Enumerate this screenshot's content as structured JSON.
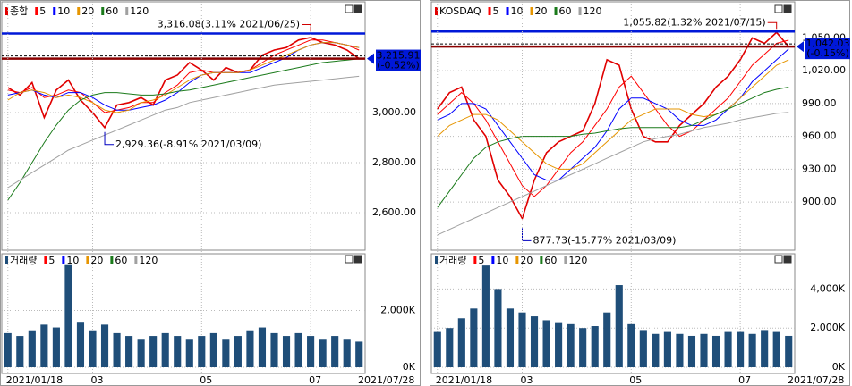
{
  "chart_data": [
    {
      "type": "line",
      "series": [
        {
          "name": "종합",
          "color": "#e00000",
          "values": [
            3100,
            3070,
            3120,
            2980,
            3090,
            3130,
            3050,
            3000,
            2940,
            3030,
            3040,
            3060,
            3030,
            3130,
            3150,
            3200,
            3170,
            3130,
            3180,
            3160,
            3170,
            3230,
            3250,
            3260,
            3290,
            3300,
            3280,
            3270,
            3250,
            3216
          ]
        },
        {
          "name": "5",
          "color": "#ff0000",
          "values": [
            3090,
            3080,
            3100,
            3060,
            3070,
            3090,
            3080,
            3040,
            3000,
            3010,
            3020,
            3040,
            3040,
            3080,
            3110,
            3160,
            3170,
            3160,
            3160,
            3160,
            3170,
            3200,
            3230,
            3250,
            3270,
            3290,
            3290,
            3280,
            3270,
            3250
          ]
        },
        {
          "name": "10",
          "color": "#0000ff",
          "values": [
            3070,
            3080,
            3090,
            3070,
            3060,
            3080,
            3080,
            3060,
            3030,
            3010,
            3010,
            3020,
            3030,
            3050,
            3080,
            3120,
            3150,
            3160,
            3160,
            3160,
            3160,
            3180,
            3200,
            3220,
            3250,
            3270,
            3280,
            3280,
            3270,
            3260
          ]
        },
        {
          "name": "20",
          "color": "#e69500",
          "values": [
            3050,
            3080,
            3090,
            3080,
            3060,
            3070,
            3060,
            3040,
            3010,
            3000,
            3010,
            3040,
            3050,
            3070,
            3100,
            3130,
            3150,
            3160,
            3160,
            3160,
            3170,
            3190,
            3210,
            3230,
            3250,
            3270,
            3280,
            3280,
            3270,
            3260
          ]
        },
        {
          "name": "60",
          "color": "#1a7a1a",
          "values": [
            2650,
            2720,
            2800,
            2880,
            2950,
            3010,
            3050,
            3070,
            3080,
            3080,
            3075,
            3070,
            3070,
            3075,
            3085,
            3090,
            3100,
            3110,
            3120,
            3130,
            3140,
            3150,
            3160,
            3170,
            3180,
            3190,
            3200,
            3205,
            3210,
            3215
          ]
        },
        {
          "name": "120",
          "color": "#a0a0a0",
          "values": [
            2700,
            2730,
            2760,
            2790,
            2820,
            2850,
            2870,
            2890,
            2910,
            2930,
            2950,
            2970,
            2990,
            3010,
            3020,
            3040,
            3050,
            3060,
            3070,
            3080,
            3090,
            3100,
            3110,
            3115,
            3120,
            3125,
            3130,
            3135,
            3140,
            3145
          ]
        }
      ],
      "ylim": [
        2450,
        3443
      ],
      "yticks": [
        {
          "value": 2600,
          "label": "2,600.00"
        },
        {
          "value": 2800,
          "label": "2,800.00"
        },
        {
          "value": 3000,
          "label": "3,000.00"
        }
      ],
      "high": {
        "value": 3316.08,
        "label": "3,316.08(3.11% 2021/06/25)"
      },
      "low": {
        "value": 2929.36,
        "label": "2,929.36(-8.91% 2021/03/09)"
      },
      "current": {
        "value": 3215.91,
        "label": "3,215.91",
        "change": "(-0.52%)"
      }
    },
    {
      "type": "bar",
      "series": [
        {
          "name": "거래량",
          "color": "#1f4e79",
          "values": [
            1200,
            1100,
            1300,
            1500,
            1400,
            3600,
            1600,
            1300,
            1500,
            1200,
            1100,
            1000,
            1100,
            1200,
            1100,
            1000,
            1100,
            1200,
            1000,
            1100,
            1300,
            1400,
            1200,
            1100,
            1200,
            1100,
            1000,
            1100,
            1000,
            900
          ]
        }
      ],
      "legend": [
        "5",
        "10",
        "20",
        "60",
        "120"
      ],
      "legend_colors": [
        "#ff0000",
        "#0000ff",
        "#e69500",
        "#1a7a1a",
        "#a0a0a0"
      ],
      "categories": [
        "2021/01/18",
        null,
        null,
        null,
        null,
        null,
        null,
        "03",
        null,
        null,
        null,
        null,
        null,
        null,
        null,
        null,
        "05",
        null,
        null,
        null,
        null,
        null,
        null,
        null,
        null,
        "07",
        null,
        null,
        null,
        null
      ],
      "current_date": "2021/07/28",
      "ylim": [
        0,
        4000
      ],
      "yticks": [
        {
          "value": 0,
          "label": "0K"
        },
        {
          "value": 2000,
          "label": "2,000K"
        }
      ]
    },
    {
      "type": "line",
      "series": [
        {
          "name": "KOSDAQ",
          "color": "#e00000",
          "values": [
            985,
            1000,
            1005,
            975,
            960,
            920,
            905,
            885,
            920,
            945,
            955,
            960,
            965,
            990,
            1030,
            1025,
            985,
            960,
            955,
            955,
            970,
            980,
            990,
            1005,
            1015,
            1030,
            1050,
            1045,
            1055,
            1042
          ]
        },
        {
          "name": "5",
          "color": "#ff0000",
          "values": [
            980,
            990,
            1000,
            990,
            975,
            955,
            935,
            915,
            905,
            915,
            930,
            945,
            955,
            970,
            985,
            1005,
            1015,
            1000,
            985,
            970,
            960,
            965,
            975,
            985,
            995,
            1010,
            1025,
            1035,
            1045,
            1048
          ]
        },
        {
          "name": "10",
          "color": "#0000ff",
          "values": [
            975,
            980,
            990,
            990,
            985,
            970,
            955,
            940,
            925,
            920,
            920,
            930,
            940,
            950,
            965,
            985,
            995,
            995,
            990,
            985,
            975,
            970,
            970,
            975,
            985,
            995,
            1010,
            1020,
            1030,
            1040
          ]
        },
        {
          "name": "20",
          "color": "#e69500",
          "values": [
            960,
            970,
            975,
            980,
            980,
            975,
            965,
            955,
            945,
            935,
            930,
            930,
            935,
            945,
            955,
            965,
            975,
            980,
            985,
            985,
            985,
            980,
            978,
            980,
            985,
            995,
            1005,
            1015,
            1025,
            1030
          ]
        },
        {
          "name": "60",
          "color": "#1a7a1a",
          "values": [
            895,
            910,
            925,
            940,
            950,
            955,
            958,
            960,
            960,
            960,
            960,
            960,
            962,
            963,
            965,
            967,
            968,
            968,
            968,
            968,
            968,
            970,
            975,
            980,
            985,
            990,
            995,
            1000,
            1003,
            1005
          ]
        },
        {
          "name": "120",
          "color": "#a0a0a0",
          "values": [
            870,
            875,
            880,
            885,
            890,
            895,
            900,
            905,
            910,
            915,
            920,
            925,
            930,
            935,
            940,
            945,
            950,
            955,
            958,
            960,
            962,
            965,
            968,
            970,
            972,
            975,
            977,
            979,
            981,
            982
          ]
        }
      ],
      "ylim": [
        856,
        1083
      ],
      "yticks": [
        {
          "value": 900,
          "label": "900.00"
        },
        {
          "value": 930,
          "label": "930.00"
        },
        {
          "value": 960,
          "label": "960.00"
        },
        {
          "value": 990,
          "label": "990.00"
        },
        {
          "value": 1020,
          "label": "1,020.00"
        },
        {
          "value": 1050,
          "label": "1,050.00"
        }
      ],
      "high": {
        "value": 1055.82,
        "label": "1,055.82(1.32% 2021/07/15)"
      },
      "low": {
        "value": 877.73,
        "label": "877.73(-15.77% 2021/03/09)"
      },
      "current": {
        "value": 1042.03,
        "label": "1,042.03",
        "change": "(-0.15%)"
      }
    },
    {
      "type": "bar",
      "series": [
        {
          "name": "거래량",
          "color": "#1f4e79",
          "values": [
            1800,
            2000,
            2500,
            3000,
            5200,
            4000,
            3000,
            2800,
            2600,
            2400,
            2300,
            2200,
            2000,
            2100,
            2800,
            4200,
            2200,
            1900,
            1700,
            1800,
            1700,
            1600,
            1700,
            1600,
            1800,
            1800,
            1700,
            1900,
            1800,
            1600
          ]
        }
      ],
      "legend": [
        "5",
        "10",
        "20",
        "60",
        "120"
      ],
      "legend_colors": [
        "#ff0000",
        "#0000ff",
        "#e69500",
        "#1a7a1a",
        "#a0a0a0"
      ],
      "categories": [
        "2021/01/18",
        null,
        null,
        null,
        null,
        null,
        null,
        "03",
        null,
        null,
        null,
        null,
        null,
        null,
        null,
        null,
        "05",
        null,
        null,
        null,
        null,
        null,
        null,
        null,
        null,
        "07",
        null,
        null,
        null,
        null
      ],
      "current_date": "2021/07/28",
      "ylim": [
        0,
        5800
      ],
      "yticks": [
        {
          "value": 0,
          "label": "0K"
        },
        {
          "value": 2000,
          "label": "2,000K"
        },
        {
          "value": 4000,
          "label": "4,000K"
        }
      ]
    }
  ]
}
